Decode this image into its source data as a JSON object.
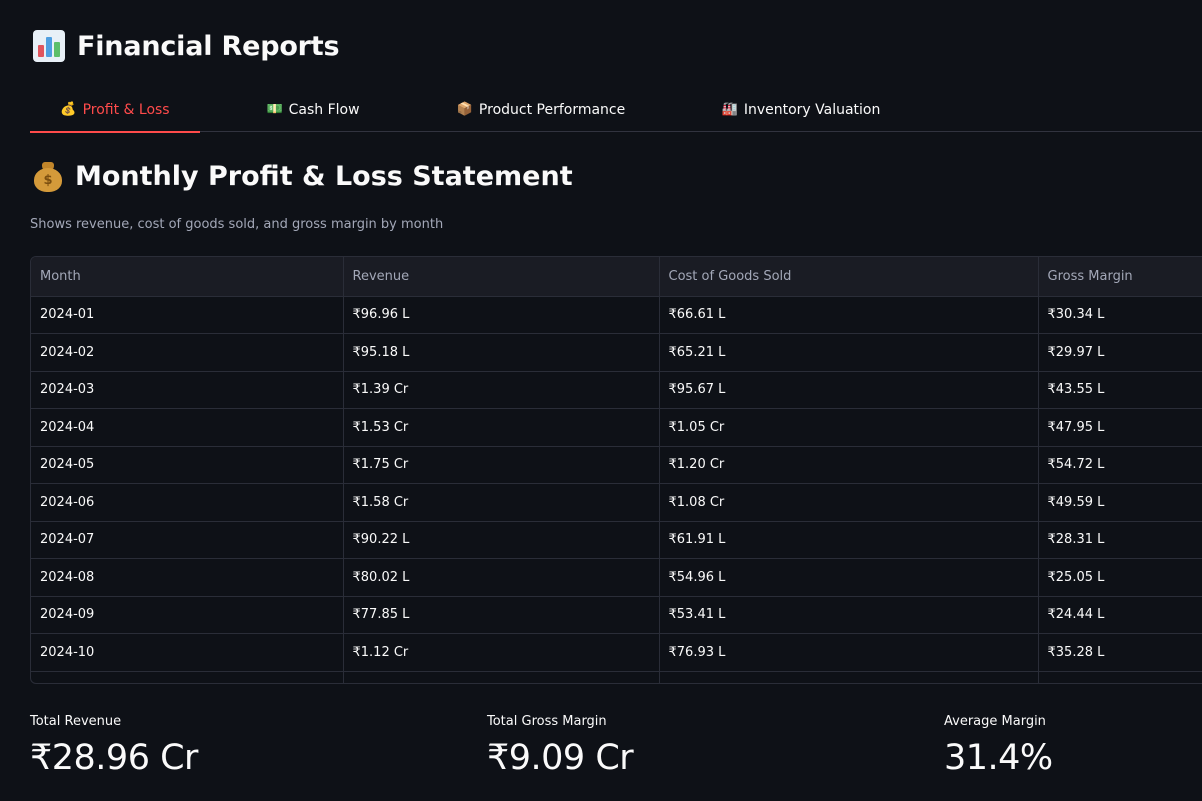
{
  "app": {
    "title": "Financial Reports",
    "title_icon": "bar-chart-icon"
  },
  "tabs": [
    {
      "emoji": "💰",
      "icon": "money-bag-icon",
      "label": "Profit & Loss",
      "active": true
    },
    {
      "emoji": "💵",
      "icon": "dollar-banknote-icon",
      "label": "Cash Flow",
      "active": false
    },
    {
      "emoji": "📦",
      "icon": "package-icon",
      "label": "Product Performance",
      "active": false
    },
    {
      "emoji": "🏭",
      "icon": "factory-icon",
      "label": "Inventory Valuation",
      "active": false
    }
  ],
  "section": {
    "title": "Monthly Profit & Loss Statement",
    "icon": "money-bag-icon",
    "caption": "Shows revenue, cost of goods sold, and gross margin by month"
  },
  "table": {
    "columns": [
      "Month",
      "Revenue",
      "Cost of Goods Sold",
      "Gross Margin"
    ],
    "rows": [
      [
        "2024-01",
        "₹96.96 L",
        "₹66.61 L",
        "₹30.34 L"
      ],
      [
        "2024-02",
        "₹95.18 L",
        "₹65.21 L",
        "₹29.97 L"
      ],
      [
        "2024-03",
        "₹1.39 Cr",
        "₹95.67 L",
        "₹43.55 L"
      ],
      [
        "2024-04",
        "₹1.53 Cr",
        "₹1.05 Cr",
        "₹47.95 L"
      ],
      [
        "2024-05",
        "₹1.75 Cr",
        "₹1.20 Cr",
        "₹54.72 L"
      ],
      [
        "2024-06",
        "₹1.58 Cr",
        "₹1.08 Cr",
        "₹49.59 L"
      ],
      [
        "2024-07",
        "₹90.22 L",
        "₹61.91 L",
        "₹28.31 L"
      ],
      [
        "2024-08",
        "₹80.02 L",
        "₹54.96 L",
        "₹25.05 L"
      ],
      [
        "2024-09",
        "₹77.85 L",
        "₹53.41 L",
        "₹24.44 L"
      ],
      [
        "2024-10",
        "₹1.12 Cr",
        "₹76.93 L",
        "₹35.28 L"
      ],
      [
        "",
        "",
        "",
        ""
      ]
    ]
  },
  "metrics": [
    {
      "label": "Total Revenue",
      "value": "₹28.96 Cr"
    },
    {
      "label": "Total Gross Margin",
      "value": "₹9.09 Cr"
    },
    {
      "label": "Average Margin",
      "value": "31.4%"
    }
  ],
  "colors": {
    "background": "#0e1117",
    "accent": "#ff4b4b",
    "text": "#fafafa",
    "muted": "#a3a8b8",
    "border": "#2a2d38"
  }
}
